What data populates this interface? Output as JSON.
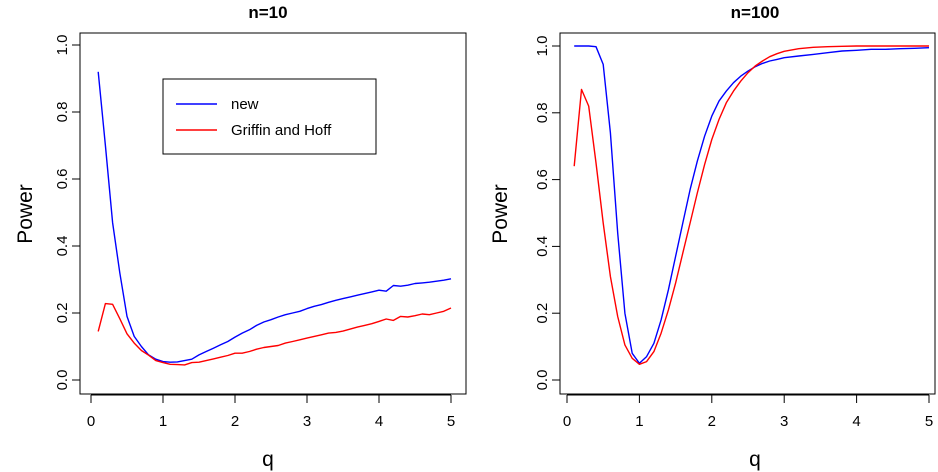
{
  "chart_data": [
    {
      "type": "line",
      "title": "n=10",
      "xlabel": "q",
      "ylabel": "Power",
      "xlim": [
        0,
        5.1
      ],
      "ylim": [
        0.0,
        1.0
      ],
      "xticks": [
        0,
        1,
        2,
        3,
        4,
        5
      ],
      "yticks": [
        "0.0",
        "0.2",
        "0.4",
        "0.6",
        "0.8",
        "1.0"
      ],
      "grid": false,
      "legend_position": "top-center",
      "series": [
        {
          "name": "new",
          "color": "#0000ff",
          "points": [
            [
              0.1,
              0.92
            ],
            [
              0.2,
              0.7
            ],
            [
              0.3,
              0.47
            ],
            [
              0.4,
              0.32
            ],
            [
              0.5,
              0.19
            ],
            [
              0.6,
              0.13
            ],
            [
              0.7,
              0.1
            ],
            [
              0.8,
              0.075
            ],
            [
              0.9,
              0.062
            ],
            [
              1.0,
              0.055
            ],
            [
              1.1,
              0.053
            ],
            [
              1.2,
              0.054
            ],
            [
              1.3,
              0.058
            ],
            [
              1.4,
              0.062
            ],
            [
              1.5,
              0.075
            ],
            [
              1.6,
              0.085
            ],
            [
              1.7,
              0.095
            ],
            [
              1.8,
              0.105
            ],
            [
              1.9,
              0.115
            ],
            [
              2.0,
              0.128
            ],
            [
              2.1,
              0.14
            ],
            [
              2.2,
              0.15
            ],
            [
              2.3,
              0.163
            ],
            [
              2.4,
              0.173
            ],
            [
              2.5,
              0.18
            ],
            [
              2.6,
              0.188
            ],
            [
              2.7,
              0.195
            ],
            [
              2.8,
              0.2
            ],
            [
              2.9,
              0.205
            ],
            [
              3.0,
              0.213
            ],
            [
              3.1,
              0.22
            ],
            [
              3.2,
              0.225
            ],
            [
              3.3,
              0.232
            ],
            [
              3.4,
              0.238
            ],
            [
              3.5,
              0.243
            ],
            [
              3.6,
              0.248
            ],
            [
              3.7,
              0.253
            ],
            [
              3.8,
              0.258
            ],
            [
              3.9,
              0.263
            ],
            [
              4.0,
              0.268
            ],
            [
              4.1,
              0.265
            ],
            [
              4.2,
              0.282
            ],
            [
              4.3,
              0.28
            ],
            [
              4.4,
              0.283
            ],
            [
              4.5,
              0.288
            ],
            [
              4.6,
              0.29
            ],
            [
              4.7,
              0.292
            ],
            [
              4.8,
              0.295
            ],
            [
              4.9,
              0.298
            ],
            [
              5.0,
              0.302
            ]
          ]
        },
        {
          "name": "Griffin and Hoff",
          "color": "#ff0000",
          "points": [
            [
              0.1,
              0.145
            ],
            [
              0.2,
              0.228
            ],
            [
              0.3,
              0.226
            ],
            [
              0.4,
              0.183
            ],
            [
              0.5,
              0.138
            ],
            [
              0.6,
              0.11
            ],
            [
              0.7,
              0.088
            ],
            [
              0.8,
              0.074
            ],
            [
              0.9,
              0.058
            ],
            [
              1.0,
              0.052
            ],
            [
              1.1,
              0.047
            ],
            [
              1.2,
              0.046
            ],
            [
              1.3,
              0.045
            ],
            [
              1.4,
              0.052
            ],
            [
              1.5,
              0.053
            ],
            [
              1.6,
              0.058
            ],
            [
              1.7,
              0.063
            ],
            [
              1.8,
              0.068
            ],
            [
              1.9,
              0.073
            ],
            [
              2.0,
              0.08
            ],
            [
              2.1,
              0.08
            ],
            [
              2.2,
              0.085
            ],
            [
              2.3,
              0.092
            ],
            [
              2.4,
              0.097
            ],
            [
              2.5,
              0.1
            ],
            [
              2.6,
              0.103
            ],
            [
              2.7,
              0.11
            ],
            [
              2.8,
              0.115
            ],
            [
              2.9,
              0.12
            ],
            [
              3.0,
              0.125
            ],
            [
              3.1,
              0.13
            ],
            [
              3.2,
              0.135
            ],
            [
              3.3,
              0.14
            ],
            [
              3.4,
              0.142
            ],
            [
              3.5,
              0.146
            ],
            [
              3.6,
              0.152
            ],
            [
              3.7,
              0.158
            ],
            [
              3.8,
              0.163
            ],
            [
              3.9,
              0.168
            ],
            [
              4.0,
              0.175
            ],
            [
              4.1,
              0.182
            ],
            [
              4.2,
              0.178
            ],
            [
              4.3,
              0.19
            ],
            [
              4.4,
              0.188
            ],
            [
              4.5,
              0.192
            ],
            [
              4.6,
              0.197
            ],
            [
              4.7,
              0.195
            ],
            [
              4.8,
              0.2
            ],
            [
              4.9,
              0.205
            ],
            [
              5.0,
              0.215
            ]
          ]
        }
      ]
    },
    {
      "type": "line",
      "title": "n=100",
      "xlabel": "q",
      "ylabel": "Power",
      "xlim": [
        0,
        5.1
      ],
      "ylim": [
        0.0,
        1.0
      ],
      "xticks": [
        0,
        1,
        2,
        3,
        4,
        5
      ],
      "yticks": [
        "0.0",
        "0.2",
        "0.4",
        "0.6",
        "0.8",
        "1.0"
      ],
      "grid": false,
      "series": [
        {
          "name": "new",
          "color": "#0000ff",
          "points": [
            [
              0.1,
              1.0
            ],
            [
              0.2,
              1.0
            ],
            [
              0.3,
              1.0
            ],
            [
              0.4,
              0.998
            ],
            [
              0.5,
              0.945
            ],
            [
              0.6,
              0.74
            ],
            [
              0.7,
              0.44
            ],
            [
              0.8,
              0.2
            ],
            [
              0.9,
              0.08
            ],
            [
              1.0,
              0.05
            ],
            [
              1.1,
              0.07
            ],
            [
              1.2,
              0.11
            ],
            [
              1.3,
              0.18
            ],
            [
              1.4,
              0.27
            ],
            [
              1.5,
              0.37
            ],
            [
              1.6,
              0.47
            ],
            [
              1.7,
              0.57
            ],
            [
              1.8,
              0.655
            ],
            [
              1.9,
              0.73
            ],
            [
              2.0,
              0.79
            ],
            [
              2.1,
              0.835
            ],
            [
              2.2,
              0.865
            ],
            [
              2.3,
              0.89
            ],
            [
              2.4,
              0.91
            ],
            [
              2.5,
              0.925
            ],
            [
              2.6,
              0.938
            ],
            [
              2.7,
              0.948
            ],
            [
              2.8,
              0.955
            ],
            [
              2.9,
              0.96
            ],
            [
              3.0,
              0.965
            ],
            [
              3.2,
              0.97
            ],
            [
              3.4,
              0.975
            ],
            [
              3.6,
              0.98
            ],
            [
              3.8,
              0.985
            ],
            [
              4.0,
              0.987
            ],
            [
              4.2,
              0.99
            ],
            [
              4.4,
              0.99
            ],
            [
              4.6,
              0.992
            ],
            [
              4.8,
              0.993
            ],
            [
              5.0,
              0.995
            ]
          ]
        },
        {
          "name": "Griffin and Hoff",
          "color": "#ff0000",
          "points": [
            [
              0.1,
              0.64
            ],
            [
              0.2,
              0.87
            ],
            [
              0.3,
              0.82
            ],
            [
              0.4,
              0.65
            ],
            [
              0.5,
              0.47
            ],
            [
              0.6,
              0.31
            ],
            [
              0.7,
              0.19
            ],
            [
              0.8,
              0.105
            ],
            [
              0.9,
              0.065
            ],
            [
              1.0,
              0.047
            ],
            [
              1.1,
              0.055
            ],
            [
              1.2,
              0.085
            ],
            [
              1.3,
              0.14
            ],
            [
              1.4,
              0.21
            ],
            [
              1.5,
              0.29
            ],
            [
              1.6,
              0.38
            ],
            [
              1.7,
              0.47
            ],
            [
              1.8,
              0.56
            ],
            [
              1.9,
              0.645
            ],
            [
              2.0,
              0.72
            ],
            [
              2.1,
              0.78
            ],
            [
              2.2,
              0.83
            ],
            [
              2.3,
              0.865
            ],
            [
              2.4,
              0.895
            ],
            [
              2.5,
              0.92
            ],
            [
              2.6,
              0.94
            ],
            [
              2.7,
              0.955
            ],
            [
              2.8,
              0.968
            ],
            [
              2.9,
              0.977
            ],
            [
              3.0,
              0.984
            ],
            [
              3.2,
              0.992
            ],
            [
              3.4,
              0.996
            ],
            [
              3.6,
              0.998
            ],
            [
              3.8,
              0.999
            ],
            [
              4.0,
              1.0
            ],
            [
              4.5,
              1.0
            ],
            [
              5.0,
              1.0
            ]
          ]
        }
      ]
    }
  ]
}
